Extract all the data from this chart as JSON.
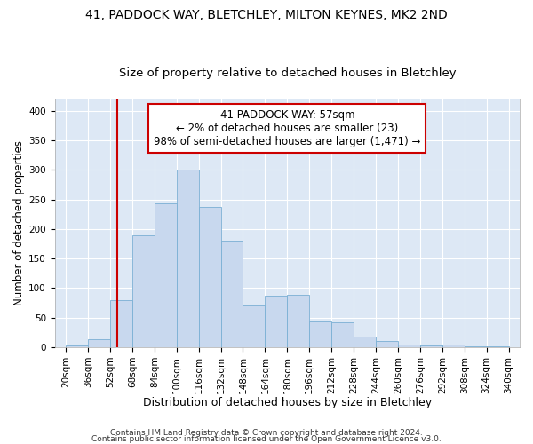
{
  "title_line1": "41, PADDOCK WAY, BLETCHLEY, MILTON KEYNES, MK2 2ND",
  "title_line2": "Size of property relative to detached houses in Bletchley",
  "xlabel": "Distribution of detached houses by size in Bletchley",
  "ylabel": "Number of detached properties",
  "footnote1": "Contains HM Land Registry data © Crown copyright and database right 2024.",
  "footnote2": "Contains public sector information licensed under the Open Government Licence v3.0.",
  "annotation_line1": "41 PADDOCK WAY: 57sqm",
  "annotation_line2": "← 2% of detached houses are smaller (23)",
  "annotation_line3": "98% of semi-detached houses are larger (1,471) →",
  "bin_edges": [
    20,
    36,
    52,
    68,
    84,
    100,
    116,
    132,
    148,
    164,
    180,
    196,
    212,
    228,
    244,
    260,
    276,
    292,
    308,
    324,
    340
  ],
  "bar_heights": [
    3,
    13,
    80,
    189,
    244,
    300,
    238,
    180,
    70,
    87,
    88,
    43,
    42,
    18,
    10,
    5,
    3,
    5,
    1,
    1
  ],
  "bar_color": "#c8d8ee",
  "bar_edge_color": "#7aafd4",
  "vline_x": 57,
  "vline_color": "#cc0000",
  "bg_color": "#dde8f5",
  "annotation_box_color": "#cc0000",
  "grid_color": "#ffffff",
  "ylim": [
    0,
    420
  ],
  "yticks": [
    0,
    50,
    100,
    150,
    200,
    250,
    300,
    350,
    400
  ],
  "title_fontsize": 10,
  "subtitle_fontsize": 9.5,
  "xlabel_fontsize": 9,
  "ylabel_fontsize": 8.5,
  "tick_fontsize": 7.5,
  "annot_fontsize": 8.5,
  "footnote_fontsize": 6.5
}
